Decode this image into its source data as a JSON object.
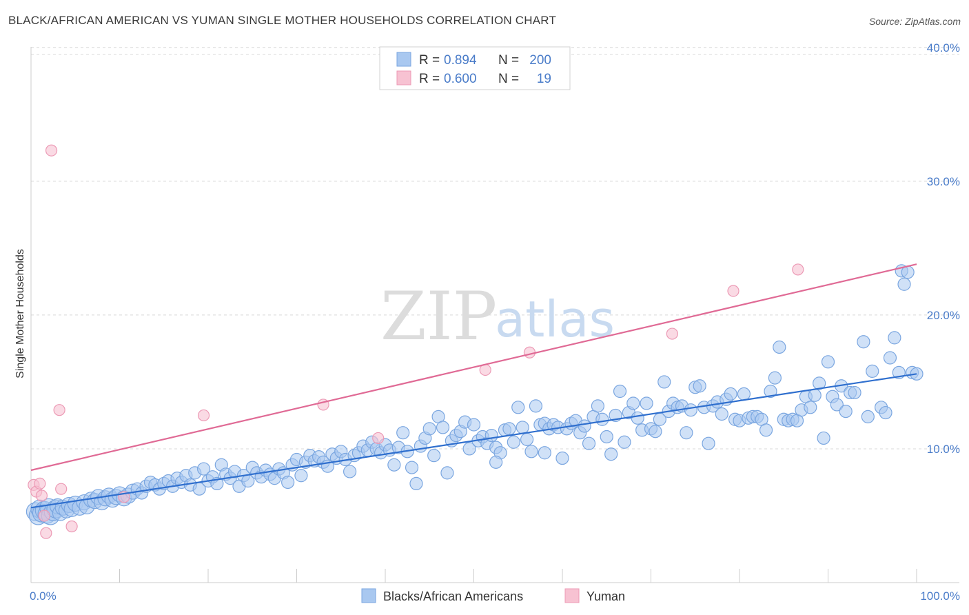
{
  "title": "BLACK/AFRICAN AMERICAN VS YUMAN SINGLE MOTHER HOUSEHOLDS CORRELATION CHART",
  "source": "Source: ZipAtlas.com",
  "watermark": {
    "zip": "ZIP",
    "atlas": "atlas"
  },
  "legend": {
    "rows": [
      {
        "r_label": "R =",
        "r_value": "0.894",
        "n_label": "N =",
        "n_value": "200"
      },
      {
        "r_label": "R =",
        "r_value": "0.600",
        "n_label": "N =",
        "n_value": "19"
      }
    ]
  },
  "bottom_legend": [
    "Blacks/African Americans",
    "Yuman"
  ],
  "colors": {
    "blue_fill": "#a9c8f0",
    "blue_stroke": "#7aa6e0",
    "blue_line": "#2f6fce",
    "pink_fill": "#f7c2d2",
    "pink_stroke": "#ec9ab5",
    "pink_line": "#e06a95",
    "tick_text": "#4a7cc9",
    "grid": "#d8d8d8"
  },
  "chart_data": {
    "type": "scatter",
    "xlabel": "",
    "ylabel": "Single Mother Households",
    "xlim": [
      0,
      100
    ],
    "ylim": [
      0,
      42
    ],
    "x_tick_labels": [
      "0.0%",
      "100.0%"
    ],
    "y_ticks": [
      10,
      20,
      30,
      40
    ],
    "y_tick_labels": [
      "10.0%",
      "20.0%",
      "30.0%",
      "40.0%"
    ],
    "grid": "horizontal dashed",
    "legend_position": "top-center",
    "series": [
      {
        "name": "Blacks/African Americans",
        "R": 0.894,
        "N": 200,
        "trend": [
          [
            0,
            5.6
          ],
          [
            100,
            15.6
          ]
        ],
        "points": [
          [
            0.5,
            5.3
          ],
          [
            0.8,
            5.0
          ],
          [
            1.0,
            5.5
          ],
          [
            1.2,
            5.2
          ],
          [
            1.5,
            5.4
          ],
          [
            1.8,
            5.1
          ],
          [
            2.0,
            5.6
          ],
          [
            2.2,
            5.0
          ],
          [
            2.5,
            5.3
          ],
          [
            2.8,
            5.5
          ],
          [
            3.0,
            5.7
          ],
          [
            3.3,
            5.2
          ],
          [
            3.6,
            5.6
          ],
          [
            4.0,
            5.4
          ],
          [
            4.3,
            5.8
          ],
          [
            4.6,
            5.5
          ],
          [
            5.0,
            5.9
          ],
          [
            5.5,
            5.6
          ],
          [
            6.0,
            6.0
          ],
          [
            6.3,
            5.7
          ],
          [
            6.8,
            6.2
          ],
          [
            7.2,
            6.1
          ],
          [
            7.6,
            6.4
          ],
          [
            8.0,
            6.0
          ],
          [
            8.4,
            6.3
          ],
          [
            8.8,
            6.5
          ],
          [
            9.2,
            6.2
          ],
          [
            9.6,
            6.4
          ],
          [
            10.0,
            6.6
          ],
          [
            10.5,
            6.3
          ],
          [
            11.0,
            6.5
          ],
          [
            11.5,
            6.8
          ],
          [
            12.0,
            7.0
          ],
          [
            12.5,
            6.7
          ],
          [
            13.0,
            7.2
          ],
          [
            13.5,
            7.5
          ],
          [
            14.0,
            7.3
          ],
          [
            14.5,
            7.0
          ],
          [
            15.0,
            7.4
          ],
          [
            15.5,
            7.6
          ],
          [
            16.0,
            7.2
          ],
          [
            16.5,
            7.8
          ],
          [
            17.0,
            7.5
          ],
          [
            17.5,
            8.0
          ],
          [
            18.0,
            7.3
          ],
          [
            18.5,
            8.2
          ],
          [
            19.0,
            7.0
          ],
          [
            19.5,
            8.5
          ],
          [
            20.0,
            7.6
          ],
          [
            20.5,
            7.9
          ],
          [
            21.0,
            7.4
          ],
          [
            21.5,
            8.8
          ],
          [
            22.0,
            8.1
          ],
          [
            22.5,
            7.8
          ],
          [
            23.0,
            8.3
          ],
          [
            23.5,
            7.2
          ],
          [
            24.0,
            8.0
          ],
          [
            24.5,
            7.6
          ],
          [
            25.0,
            8.6
          ],
          [
            25.5,
            8.2
          ],
          [
            26.0,
            7.9
          ],
          [
            26.5,
            8.4
          ],
          [
            27.0,
            8.1
          ],
          [
            27.5,
            7.8
          ],
          [
            28.0,
            8.5
          ],
          [
            28.5,
            8.2
          ],
          [
            29.0,
            7.5
          ],
          [
            29.5,
            8.8
          ],
          [
            30.0,
            9.2
          ],
          [
            30.5,
            8.0
          ],
          [
            31.0,
            9.0
          ],
          [
            31.5,
            9.5
          ],
          [
            32.0,
            9.1
          ],
          [
            32.5,
            9.4
          ],
          [
            33.0,
            9.0
          ],
          [
            33.5,
            8.7
          ],
          [
            34.0,
            9.6
          ],
          [
            34.5,
            9.3
          ],
          [
            35.0,
            9.8
          ],
          [
            35.5,
            9.2
          ],
          [
            36.0,
            8.3
          ],
          [
            36.5,
            9.5
          ],
          [
            37.0,
            9.7
          ],
          [
            37.5,
            10.2
          ],
          [
            38.0,
            9.9
          ],
          [
            38.5,
            10.5
          ],
          [
            39.0,
            10.0
          ],
          [
            39.5,
            9.7
          ],
          [
            40.0,
            10.3
          ],
          [
            40.5,
            9.9
          ],
          [
            41.0,
            8.8
          ],
          [
            41.5,
            10.1
          ],
          [
            42.0,
            11.2
          ],
          [
            42.5,
            9.8
          ],
          [
            43.0,
            8.6
          ],
          [
            43.5,
            7.4
          ],
          [
            44.0,
            10.2
          ],
          [
            44.5,
            10.8
          ],
          [
            45.0,
            11.5
          ],
          [
            45.5,
            9.5
          ],
          [
            46.0,
            12.4
          ],
          [
            46.5,
            11.6
          ],
          [
            47.0,
            8.2
          ],
          [
            47.5,
            10.6
          ],
          [
            48.0,
            11.0
          ],
          [
            48.5,
            11.3
          ],
          [
            49.0,
            12.0
          ],
          [
            49.5,
            10.0
          ],
          [
            50.0,
            11.8
          ],
          [
            50.5,
            10.6
          ],
          [
            51.0,
            10.9
          ],
          [
            51.5,
            10.4
          ],
          [
            52.0,
            11.0
          ],
          [
            52.5,
            10.1
          ],
          [
            53.0,
            9.7
          ],
          [
            53.5,
            11.4
          ],
          [
            54.0,
            11.5
          ],
          [
            54.5,
            10.5
          ],
          [
            55.0,
            13.1
          ],
          [
            55.5,
            11.6
          ],
          [
            56.0,
            10.7
          ],
          [
            56.5,
            9.8
          ],
          [
            57.0,
            13.2
          ],
          [
            57.5,
            11.8
          ],
          [
            58.0,
            11.9
          ],
          [
            58.5,
            11.5
          ],
          [
            59.0,
            11.8
          ],
          [
            59.5,
            11.6
          ],
          [
            60.0,
            9.3
          ],
          [
            60.5,
            11.5
          ],
          [
            61.0,
            11.9
          ],
          [
            61.5,
            12.1
          ],
          [
            62.0,
            11.2
          ],
          [
            62.5,
            11.7
          ],
          [
            63.0,
            10.4
          ],
          [
            63.5,
            12.4
          ],
          [
            64.0,
            13.2
          ],
          [
            64.5,
            12.2
          ],
          [
            65.0,
            10.9
          ],
          [
            65.5,
            9.6
          ],
          [
            66.0,
            12.5
          ],
          [
            66.5,
            14.3
          ],
          [
            67.0,
            10.5
          ],
          [
            67.5,
            12.7
          ],
          [
            68.0,
            13.4
          ],
          [
            68.5,
            12.3
          ],
          [
            69.0,
            11.4
          ],
          [
            69.5,
            13.4
          ],
          [
            70.0,
            11.5
          ],
          [
            70.5,
            11.3
          ],
          [
            71.0,
            12.2
          ],
          [
            71.5,
            15.0
          ],
          [
            72.0,
            12.8
          ],
          [
            72.5,
            13.4
          ],
          [
            73.0,
            13.1
          ],
          [
            73.5,
            13.2
          ],
          [
            74.0,
            11.2
          ],
          [
            74.5,
            12.9
          ],
          [
            75.0,
            14.6
          ],
          [
            75.5,
            14.7
          ],
          [
            76.0,
            13.1
          ],
          [
            76.5,
            10.4
          ],
          [
            77.0,
            13.2
          ],
          [
            77.5,
            13.5
          ],
          [
            78.0,
            12.6
          ],
          [
            78.5,
            13.7
          ],
          [
            79.0,
            14.1
          ],
          [
            79.5,
            12.2
          ],
          [
            80.0,
            12.1
          ],
          [
            80.5,
            14.1
          ],
          [
            81.0,
            12.3
          ],
          [
            81.5,
            12.4
          ],
          [
            82.0,
            12.4
          ],
          [
            82.5,
            12.2
          ],
          [
            83.0,
            11.4
          ],
          [
            83.5,
            14.3
          ],
          [
            84.0,
            15.3
          ],
          [
            84.5,
            17.6
          ],
          [
            85.0,
            12.2
          ],
          [
            85.5,
            12.1
          ],
          [
            86.0,
            12.2
          ],
          [
            86.5,
            12.1
          ],
          [
            87.0,
            12.9
          ],
          [
            87.5,
            13.9
          ],
          [
            88.0,
            13.1
          ],
          [
            88.5,
            14.0
          ],
          [
            89.0,
            14.9
          ],
          [
            89.5,
            10.8
          ],
          [
            90.0,
            16.5
          ],
          [
            90.5,
            13.9
          ],
          [
            91.0,
            13.3
          ],
          [
            91.5,
            14.7
          ],
          [
            92.0,
            12.8
          ],
          [
            92.5,
            14.2
          ],
          [
            93.0,
            14.2
          ],
          [
            94.0,
            18.0
          ],
          [
            94.5,
            12.4
          ],
          [
            95.0,
            15.8
          ],
          [
            96.0,
            13.1
          ],
          [
            96.5,
            12.7
          ],
          [
            97.0,
            16.8
          ],
          [
            97.5,
            18.3
          ],
          [
            98.0,
            15.7
          ],
          [
            98.3,
            23.3
          ],
          [
            98.6,
            22.3
          ],
          [
            99.0,
            23.2
          ],
          [
            99.5,
            15.7
          ],
          [
            100.0,
            15.6
          ],
          [
            58.0,
            9.7
          ],
          [
            52.5,
            9.0
          ]
        ]
      },
      {
        "name": "Yuman",
        "R": 0.6,
        "N": 19,
        "trend": [
          [
            0,
            8.4
          ],
          [
            100,
            23.8
          ]
        ],
        "points": [
          [
            0.3,
            7.3
          ],
          [
            0.6,
            6.8
          ],
          [
            1.0,
            7.4
          ],
          [
            1.2,
            6.5
          ],
          [
            1.5,
            5.0
          ],
          [
            1.7,
            3.7
          ],
          [
            2.3,
            32.3
          ],
          [
            3.2,
            12.9
          ],
          [
            3.4,
            7.0
          ],
          [
            4.6,
            4.2
          ],
          [
            10.5,
            6.4
          ],
          [
            19.5,
            12.5
          ],
          [
            33.0,
            13.3
          ],
          [
            39.2,
            10.8
          ],
          [
            51.3,
            15.9
          ],
          [
            56.3,
            17.2
          ],
          [
            72.4,
            18.6
          ],
          [
            79.3,
            21.8
          ],
          [
            86.6,
            23.4
          ]
        ]
      }
    ]
  }
}
